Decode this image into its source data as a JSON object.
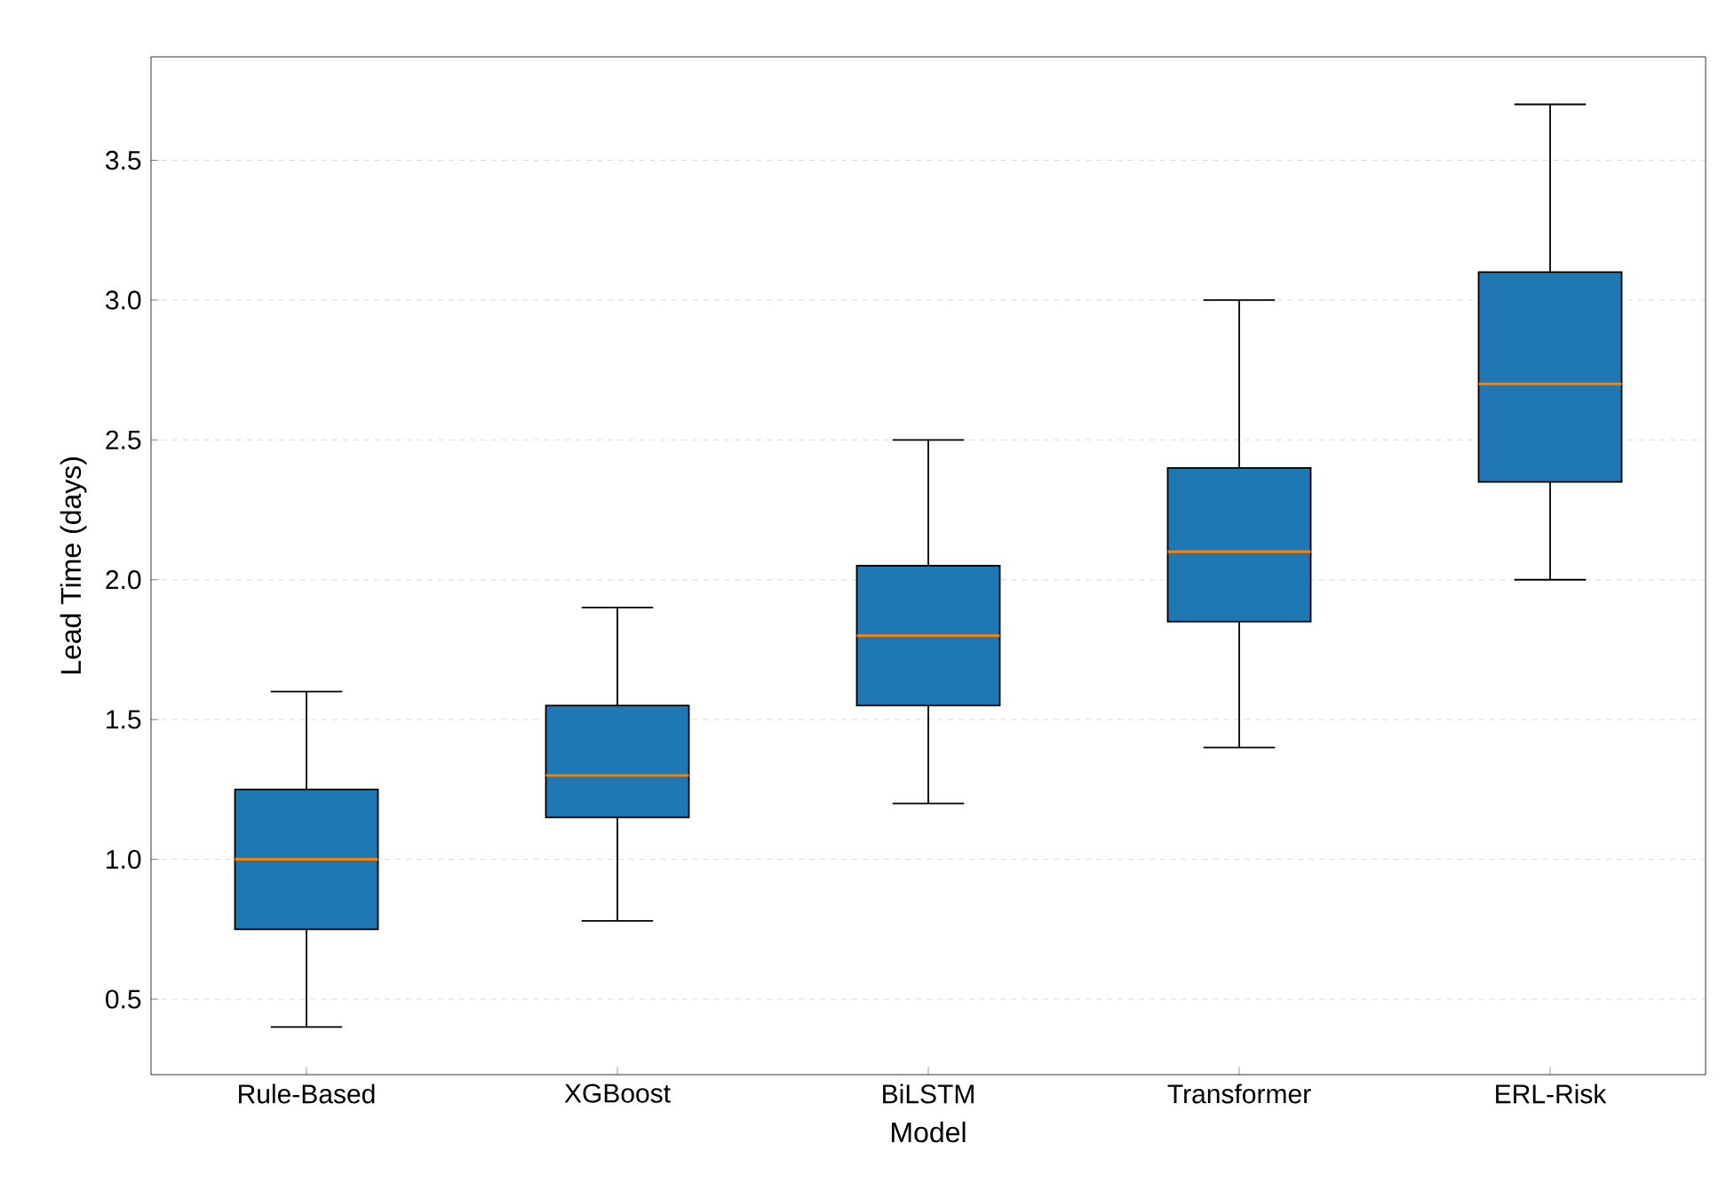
{
  "chart_data": {
    "type": "box",
    "xlabel": "Model",
    "ylabel": "Lead Time (days)",
    "categories": [
      "Rule-Based",
      "XGBoost",
      "BiLSTM",
      "Transformer",
      "ERL-Risk"
    ],
    "boxes": [
      {
        "low": 0.4,
        "q1": 0.75,
        "median": 1.0,
        "q3": 1.25,
        "high": 1.6
      },
      {
        "low": 0.78,
        "q1": 1.15,
        "median": 1.3,
        "q3": 1.55,
        "high": 1.9
      },
      {
        "low": 1.2,
        "q1": 1.55,
        "median": 1.8,
        "q3": 2.05,
        "high": 2.5
      },
      {
        "low": 1.4,
        "q1": 1.85,
        "median": 2.1,
        "q3": 2.4,
        "high": 3.0
      },
      {
        "low": 2.0,
        "q1": 2.35,
        "median": 2.7,
        "q3": 3.1,
        "high": 3.7
      }
    ],
    "color": "#1f77b4",
    "ylim": [
      0.23,
      3.87
    ],
    "yticks": [
      0.5,
      {
        "value": 1,
        "label": "1.0"
      },
      1.5,
      {
        "value": 2,
        "label": "2.0"
      },
      2.5,
      {
        "value": 3,
        "label": "3.0"
      },
      3.5
    ],
    "grid": "y"
  }
}
